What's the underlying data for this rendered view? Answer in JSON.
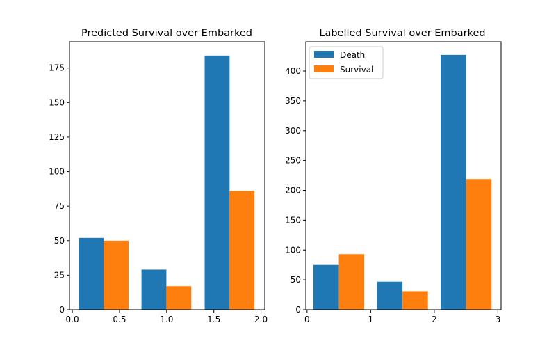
{
  "colors": {
    "death": "#1f77b4",
    "survival": "#ff7f0e"
  },
  "chart_data": [
    {
      "type": "bar",
      "title": "Predicted Survival over Embarked",
      "xlabel": "",
      "ylabel": "",
      "xlim": [
        -0.03,
        2.04
      ],
      "ylim": [
        0,
        194
      ],
      "xticks": [
        0.0,
        0.5,
        1.0,
        1.5,
        2.0
      ],
      "xtick_labels": [
        "0.0",
        "0.5",
        "1.0",
        "1.5",
        "2.0"
      ],
      "yticks": [
        0,
        25,
        50,
        75,
        100,
        125,
        150,
        175
      ],
      "ytick_labels": [
        "0",
        "25",
        "50",
        "75",
        "100",
        "125",
        "150",
        "175"
      ],
      "legend": null,
      "series": [
        {
          "key": "death",
          "bins": [
            [
              0.07,
              0.333
            ],
            [
              0.733,
              0.997
            ],
            [
              1.403,
              1.667
            ]
          ],
          "values": [
            52,
            29,
            184
          ]
        },
        {
          "key": "survival",
          "bins": [
            [
              0.333,
              0.597
            ],
            [
              0.997,
              1.261
            ],
            [
              1.667,
              1.931
            ]
          ],
          "values": [
            50,
            17,
            86
          ]
        }
      ]
    },
    {
      "type": "bar",
      "title": "Labelled Survival over Embarked",
      "xlabel": "",
      "ylabel": "",
      "xlim": [
        -0.02,
        3.05
      ],
      "ylim": [
        0,
        449
      ],
      "xticks": [
        0,
        1,
        2,
        3
      ],
      "xtick_labels": [
        "0",
        "1",
        "2",
        "3"
      ],
      "yticks": [
        0,
        50,
        100,
        150,
        200,
        250,
        300,
        350,
        400
      ],
      "ytick_labels": [
        "0",
        "50",
        "100",
        "150",
        "200",
        "250",
        "300",
        "350",
        "400"
      ],
      "legend": {
        "placement": "top-left",
        "entries": [
          {
            "label": "Death",
            "key": "death"
          },
          {
            "label": "Survival",
            "key": "survival"
          }
        ]
      },
      "series": [
        {
          "key": "death",
          "bins": [
            [
              0.1,
              0.5
            ],
            [
              1.1,
              1.5
            ],
            [
              2.1,
              2.5
            ]
          ],
          "values": [
            75,
            47,
            427
          ]
        },
        {
          "key": "survival",
          "bins": [
            [
              0.5,
              0.9
            ],
            [
              1.5,
              1.9
            ],
            [
              2.5,
              2.9
            ]
          ],
          "values": [
            93,
            31,
            219
          ]
        }
      ]
    }
  ]
}
